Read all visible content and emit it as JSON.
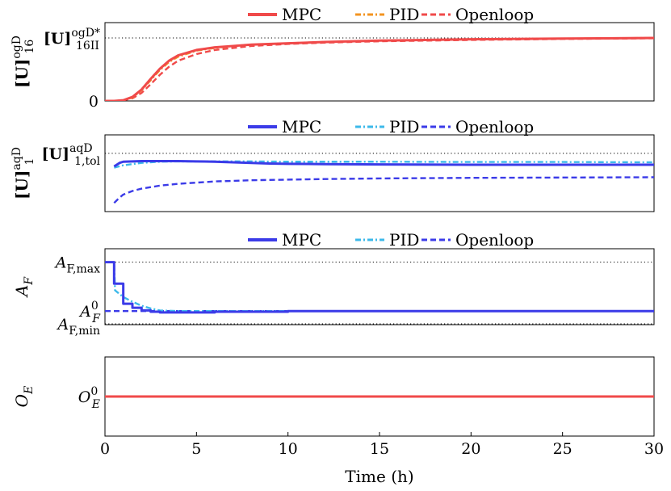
{
  "chart_data": {
    "type": "line",
    "xlabel": "Time (h)",
    "xlim": [
      0,
      30
    ],
    "xticks": [
      0,
      5,
      10,
      15,
      20,
      25,
      30
    ],
    "colors": {
      "red": "#f04a4a",
      "orange": "#f39420",
      "blue": "#3b3be8",
      "cyan": "#3cb9ea"
    },
    "panels": [
      {
        "ylabel": {
          "main": "[U]",
          "sup": "ogD",
          "sub": "16"
        },
        "ylim": [
          0,
          1.0
        ],
        "ref_lines": [
          {
            "y": 0.94,
            "label": {
              "main": "[U]",
              "sup": "ogD*",
              "sub": "16II"
            }
          }
        ],
        "y_tick_labels": [
          {
            "y": 0,
            "text": "0"
          }
        ],
        "legend": [
          "MPC",
          "PID",
          "Openloop"
        ],
        "series": [
          {
            "name": "MPC",
            "style": "solid",
            "color": "red",
            "x": [
              0,
              0.5,
              1,
              1.5,
              2,
              2.5,
              3,
              3.5,
              4,
              5,
              6,
              7,
              8,
              10,
              12,
              15,
              20,
              25,
              30
            ],
            "y": [
              0,
              0.0,
              0.01,
              0.06,
              0.17,
              0.33,
              0.48,
              0.6,
              0.68,
              0.76,
              0.8,
              0.82,
              0.84,
              0.86,
              0.88,
              0.9,
              0.92,
              0.93,
              0.94
            ]
          },
          {
            "name": "PID",
            "style": "dashdot",
            "color": "orange",
            "x": [
              0,
              0.5,
              1,
              1.5,
              2,
              2.5,
              3,
              3.5,
              4,
              5,
              6,
              7,
              8,
              10,
              12,
              15,
              20,
              25,
              30
            ],
            "y": [
              0,
              0.0,
              0.01,
              0.05,
              0.16,
              0.31,
              0.46,
              0.58,
              0.66,
              0.75,
              0.79,
              0.82,
              0.84,
              0.86,
              0.88,
              0.9,
              0.92,
              0.93,
              0.94
            ]
          },
          {
            "name": "Openloop",
            "style": "dashed",
            "color": "red",
            "x": [
              0,
              0.5,
              1,
              1.5,
              2,
              2.5,
              3,
              3.5,
              4,
              5,
              6,
              7,
              8,
              10,
              12,
              15,
              20,
              25,
              30
            ],
            "y": [
              0,
              0.0,
              0.01,
              0.04,
              0.12,
              0.25,
              0.39,
              0.51,
              0.6,
              0.7,
              0.76,
              0.79,
              0.82,
              0.85,
              0.87,
              0.89,
              0.91,
              0.925,
              0.935
            ]
          }
        ]
      },
      {
        "ylabel": {
          "main": "[U]",
          "sup": "aqD",
          "sub": "1"
        },
        "ylim": [
          0,
          1.0
        ],
        "ref_lines": [
          {
            "y": 0.88,
            "label": {
              "main": "[U]",
              "sup": "aqD",
              "sub": "1,tol"
            }
          }
        ],
        "y_tick_labels": [],
        "legend": [
          "MPC",
          "PID",
          "Openloop"
        ],
        "series": [
          {
            "name": "MPC",
            "style": "solid",
            "color": "blue",
            "x": [
              0.5,
              0.8,
              1.0,
              2,
              3,
              4,
              5,
              6,
              7,
              8,
              9,
              10,
              12,
              15,
              20,
              25,
              30
            ],
            "y": [
              0.66,
              0.72,
              0.74,
              0.75,
              0.75,
              0.75,
              0.745,
              0.74,
              0.73,
              0.72,
              0.71,
              0.705,
              0.7,
              0.695,
              0.69,
              0.69,
              0.69
            ]
          },
          {
            "name": "PID",
            "style": "dashdot",
            "color": "cyan",
            "x": [
              0.5,
              1,
              2,
              3,
              4,
              5,
              6,
              8,
              10,
              12,
              15,
              20,
              25,
              30
            ],
            "y": [
              0.64,
              0.68,
              0.72,
              0.74,
              0.745,
              0.745,
              0.745,
              0.745,
              0.74,
              0.74,
              0.74,
              0.735,
              0.735,
              0.73
            ]
          },
          {
            "name": "Openloop",
            "style": "dashed",
            "color": "blue",
            "x": [
              0.5,
              0.8,
              1,
              1.5,
              2,
              3,
              4,
              5,
              6,
              8,
              10,
              12,
              15,
              20,
              25,
              30
            ],
            "y": [
              0.05,
              0.14,
              0.19,
              0.25,
              0.29,
              0.34,
              0.37,
              0.39,
              0.41,
              0.43,
              0.44,
              0.45,
              0.46,
              0.47,
              0.475,
              0.48
            ]
          }
        ]
      },
      {
        "ylabel": {
          "main": "A",
          "sub": "F"
        },
        "ylim": [
          0,
          1.0
        ],
        "ref_lines": [
          {
            "y": 0.92,
            "label": {
              "main": "A",
              "sub": "F,max"
            }
          },
          {
            "y": 0.0,
            "label": {
              "main": "A",
              "sub": "F,min"
            }
          }
        ],
        "y_tick_labels": [
          {
            "y": 0.19,
            "main": "A",
            "sub": "F",
            "sup": "0"
          }
        ],
        "legend": [
          "MPC",
          "PID",
          "Openloop"
        ],
        "series": [
          {
            "name": "MPC",
            "style": "solid",
            "color": "blue",
            "step": true,
            "x": [
              0,
              0.5,
              1.0,
              1.5,
              2.0,
              2.5,
              3.0,
              4.0,
              6.0,
              10,
              15,
              20,
              25,
              30
            ],
            "y": [
              0.92,
              0.6,
              0.3,
              0.24,
              0.2,
              0.18,
              0.17,
              0.17,
              0.18,
              0.19,
              0.19,
              0.19,
              0.19,
              0.19
            ]
          },
          {
            "name": "PID",
            "style": "dashdot",
            "color": "cyan",
            "x": [
              0,
              0.5,
              0.55,
              1,
              1.5,
              2,
              2.5,
              3,
              4,
              5,
              6,
              8,
              10,
              15,
              20,
              25,
              30
            ],
            "y": [
              0.92,
              0.92,
              0.5,
              0.4,
              0.33,
              0.27,
              0.23,
              0.2,
              0.19,
              0.19,
              0.19,
              0.19,
              0.19,
              0.19,
              0.19,
              0.19,
              0.19
            ]
          },
          {
            "name": "Openloop",
            "style": "dashed",
            "color": "blue",
            "x": [
              0,
              30
            ],
            "y": [
              0.19,
              0.19
            ]
          }
        ]
      },
      {
        "ylabel": {
          "main": "O",
          "sub": "E"
        },
        "ylim": [
          0,
          1.0
        ],
        "ref_lines": [],
        "y_tick_labels": [
          {
            "y": 0.5,
            "main": "O",
            "sub": "E",
            "sup": "0"
          }
        ],
        "legend": [],
        "series": [
          {
            "name": "MPC",
            "style": "solid",
            "color": "red",
            "x": [
              0,
              30
            ],
            "y": [
              0.5,
              0.5
            ]
          }
        ]
      }
    ]
  }
}
